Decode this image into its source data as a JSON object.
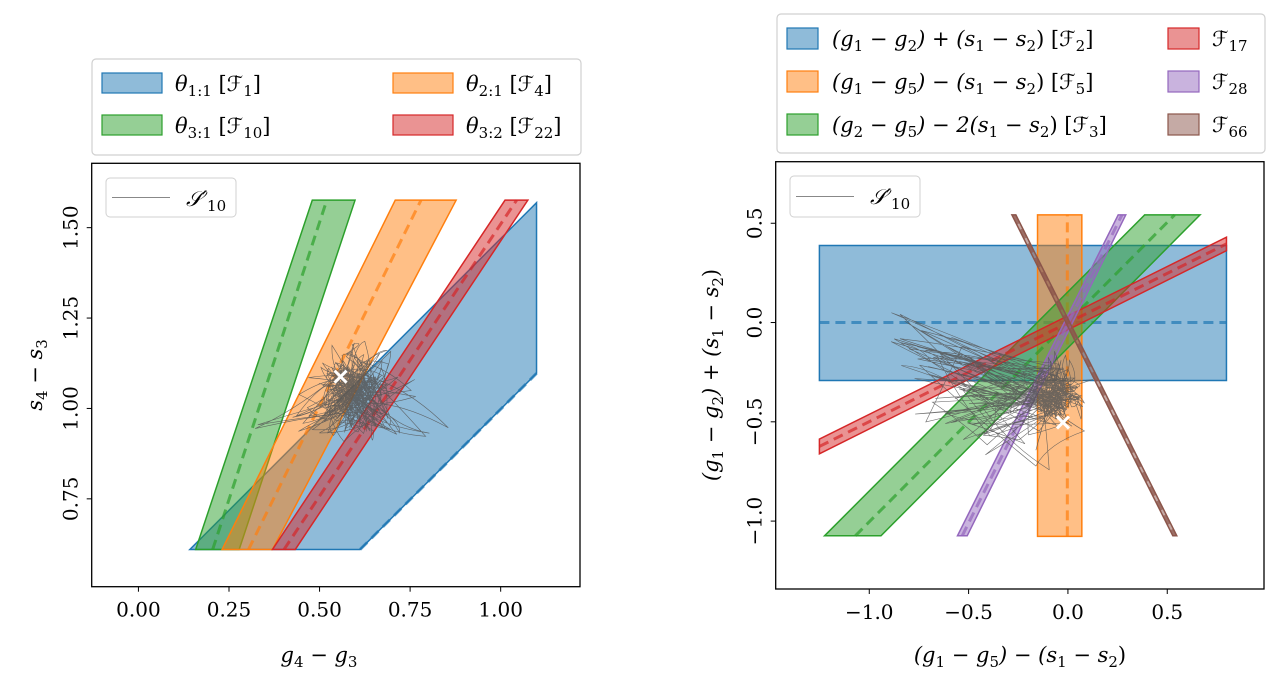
{
  "colors": {
    "blue": "#1f77b4",
    "orange": "#ff7f0e",
    "green": "#2ca02c",
    "red": "#d62728",
    "purple": "#9467bd",
    "brown": "#8c564b",
    "trajectory": "#555555",
    "marker": "#ffffff"
  },
  "chart_data": [
    {
      "type": "area",
      "panel": "left",
      "xlabel": "g_{4} − g_{3}",
      "ylabel": "s_{4} − s_{3}",
      "xlim": [
        -0.129,
        1.219
      ],
      "ylim": [
        0.507,
        1.678
      ],
      "xticks": [
        0.0,
        0.25,
        0.5,
        0.75,
        1.0
      ],
      "xtick_labels": [
        "0.00",
        "0.25",
        "0.50",
        "0.75",
        "1.00"
      ],
      "yticks": [
        0.75,
        1.0,
        1.25,
        1.5
      ],
      "ytick_labels": [
        "0.75",
        "1.00",
        "1.25",
        "1.50"
      ],
      "grid": false,
      "legend_placement": "above",
      "legend": [
        {
          "label": "θ_{1:1} [ℱ_{1}]",
          "color": "blue"
        },
        {
          "label": "θ_{2:1} [ℱ_{4}]",
          "color": "orange"
        },
        {
          "label": "θ_{3:1} [ℱ_{10}]",
          "color": "green"
        },
        {
          "label": "θ_{3:2} [ℱ_{22}]",
          "color": "red"
        }
      ],
      "inner_legend": {
        "label": "𝒮′_{10}",
        "placement": "upper-left"
      },
      "regions": [
        {
          "name": "theta-1-1",
          "color": "blue",
          "polygon": [
            [
              0.142,
              0.61
            ],
            [
              0.612,
              0.61
            ],
            [
              1.099,
              1.097
            ],
            [
              1.099,
              1.569
            ]
          ],
          "dashed": [
            [
              0.612,
              0.61
            ],
            [
              1.099,
              1.097
            ]
          ]
        },
        {
          "name": "theta-3-1",
          "color": "green",
          "polygon": [
            [
              0.158,
              0.61
            ],
            [
              0.278,
              0.61
            ],
            [
              0.598,
              1.576
            ],
            [
              0.48,
              1.576
            ]
          ],
          "dashed": [
            [
              0.205,
              0.61
            ],
            [
              0.52,
              1.576
            ]
          ]
        },
        {
          "name": "theta-2-1",
          "color": "orange",
          "polygon": [
            [
              0.231,
              0.61
            ],
            [
              0.37,
              0.61
            ],
            [
              0.877,
              1.576
            ],
            [
              0.709,
              1.576
            ]
          ],
          "dashed": [
            [
              0.304,
              0.61
            ],
            [
              0.78,
              1.576
            ]
          ]
        },
        {
          "name": "theta-3-2",
          "color": "red",
          "polygon": [
            [
              0.37,
              0.61
            ],
            [
              0.433,
              0.61
            ],
            [
              1.075,
              1.576
            ],
            [
              1.012,
              1.576
            ]
          ],
          "dashed": [
            [
              0.402,
              0.61
            ],
            [
              1.044,
              1.576
            ]
          ]
        }
      ],
      "marker": {
        "x": 0.558,
        "y": 1.088,
        "symbol": "x"
      },
      "trajectory_center": [
        0.6,
        1.05
      ]
    },
    {
      "type": "area",
      "panel": "right",
      "xlabel": "(g_{1} − g_{5}) − (s_{1} − s_{2})",
      "ylabel": "(g_{1} − g_{2}) + (s_{1} − s_{2})",
      "xlim": [
        -1.471,
        0.987
      ],
      "ylim": [
        -1.342,
        0.81
      ],
      "xticks": [
        -1.0,
        -0.5,
        0.0,
        0.5
      ],
      "xtick_labels": [
        "−1.0",
        "−0.5",
        "0.0",
        "0.5"
      ],
      "yticks": [
        -1.0,
        -0.5,
        0.0,
        0.5
      ],
      "ytick_labels": [
        "−1.0",
        "−0.5",
        "0.0",
        "0.5"
      ],
      "grid": false,
      "legend_placement": "above",
      "legend": [
        {
          "label": "(g_{1} − g_{2}) + (s_{1} − s_{2}) [ℱ_{2}]",
          "color": "blue"
        },
        {
          "label": "(g_{1} − g_{5}) − (s_{1} − s_{2}) [ℱ_{5}]",
          "color": "orange"
        },
        {
          "label": "(g_{2} − g_{5}) − 2(s_{1} − s_{2}) [ℱ_{3}]",
          "color": "green"
        },
        {
          "label": "ℱ_{17}",
          "color": "red"
        },
        {
          "label": "ℱ_{28}",
          "color": "purple"
        },
        {
          "label": "ℱ_{66}",
          "color": "brown"
        }
      ],
      "inner_legend": {
        "label": "𝒮′_{10}",
        "placement": "upper-left"
      },
      "regions": [
        {
          "name": "F2",
          "color": "blue",
          "polygon": [
            [
              -1.251,
              -0.292
            ],
            [
              0.798,
              -0.292
            ],
            [
              0.798,
              0.388
            ],
            [
              -1.251,
              0.388
            ]
          ],
          "dashed": [
            [
              -1.251,
              0.0
            ],
            [
              0.798,
              0.0
            ]
          ]
        },
        {
          "name": "F5",
          "color": "orange",
          "polygon": [
            [
              -0.153,
              -1.077
            ],
            [
              0.07,
              -1.077
            ],
            [
              0.07,
              0.542
            ],
            [
              -0.153,
              0.542
            ]
          ],
          "dashed": [
            [
              -0.003,
              -1.077
            ],
            [
              -0.003,
              0.542
            ]
          ]
        },
        {
          "name": "F3",
          "color": "green",
          "polygon": [
            [
              -1.225,
              -1.074
            ],
            [
              -0.941,
              -1.074
            ],
            [
              0.665,
              0.542
            ],
            [
              0.386,
              0.542
            ]
          ],
          "dashed": [
            [
              -1.07,
              -1.074
            ],
            [
              0.537,
              0.542
            ]
          ]
        },
        {
          "name": "F17",
          "color": "red",
          "polygon": [
            [
              -1.251,
              -0.661
            ],
            [
              0.798,
              0.362
            ],
            [
              0.798,
              0.43
            ],
            [
              -1.251,
              -0.587
            ]
          ],
          "dashed": [
            [
              -1.251,
              -0.624
            ],
            [
              0.798,
              0.396
            ]
          ]
        },
        {
          "name": "F28",
          "color": "purple",
          "polygon": [
            [
              -0.556,
              -1.074
            ],
            [
              -0.507,
              -1.074
            ],
            [
              0.291,
              0.542
            ],
            [
              0.253,
              0.542
            ]
          ],
          "dashed": [
            [
              -0.532,
              -1.074
            ],
            [
              0.272,
              0.542
            ]
          ]
        },
        {
          "name": "F66",
          "color": "brown",
          "polygon": [
            [
              -0.282,
              0.542
            ],
            [
              -0.262,
              0.542
            ],
            [
              0.548,
              -1.074
            ],
            [
              0.528,
              -1.074
            ]
          ],
          "dashed": [
            [
              -0.272,
              0.542
            ],
            [
              0.538,
              -1.074
            ]
          ]
        }
      ],
      "marker": {
        "x": -0.025,
        "y": -0.503,
        "symbol": "x"
      },
      "trajectory_center": [
        -0.05,
        -0.35
      ]
    }
  ]
}
